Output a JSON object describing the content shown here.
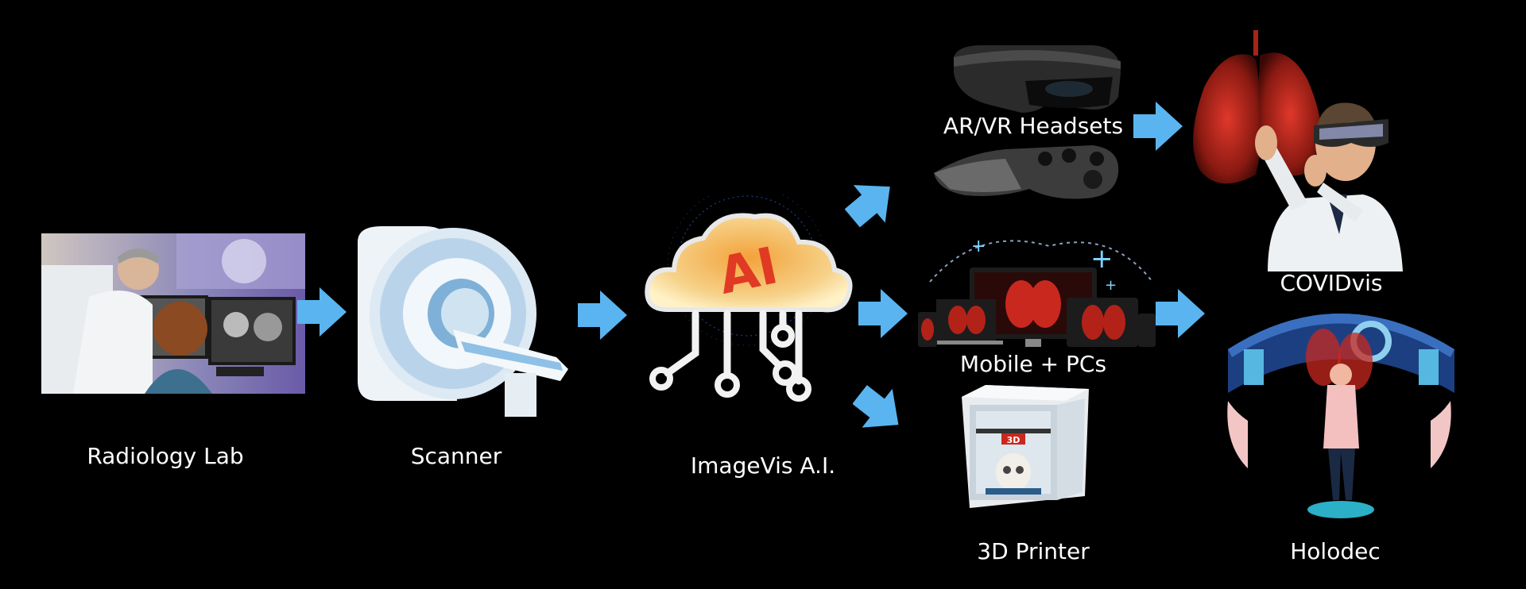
{
  "diagram": {
    "nodes": {
      "radiology_lab": "Radiology Lab",
      "scanner": "Scanner",
      "imagevis_ai": "ImageVis A.I.",
      "ar_vr_headsets": "AR/VR Headsets",
      "mobile_pcs": "Mobile + PCs",
      "printer_3d": "3D Printer",
      "covidvis": "COVIDvis",
      "holodec": "Holodec"
    },
    "ai_logo_text": "AI",
    "printer_badge_text": "3D",
    "colors": {
      "background": "#000000",
      "arrow": "#5ab4f0",
      "lung_red": "#c8281e",
      "ai_cloud": "#f6d28a",
      "holo_blue": "#2a6ab8"
    },
    "icons": [
      "radiology-photo",
      "mri-scanner-icon",
      "ai-cloud-icon",
      "headset-icon",
      "devices-icon",
      "3d-printer-icon",
      "covid-lungs-icon",
      "holodeck-icon"
    ]
  }
}
